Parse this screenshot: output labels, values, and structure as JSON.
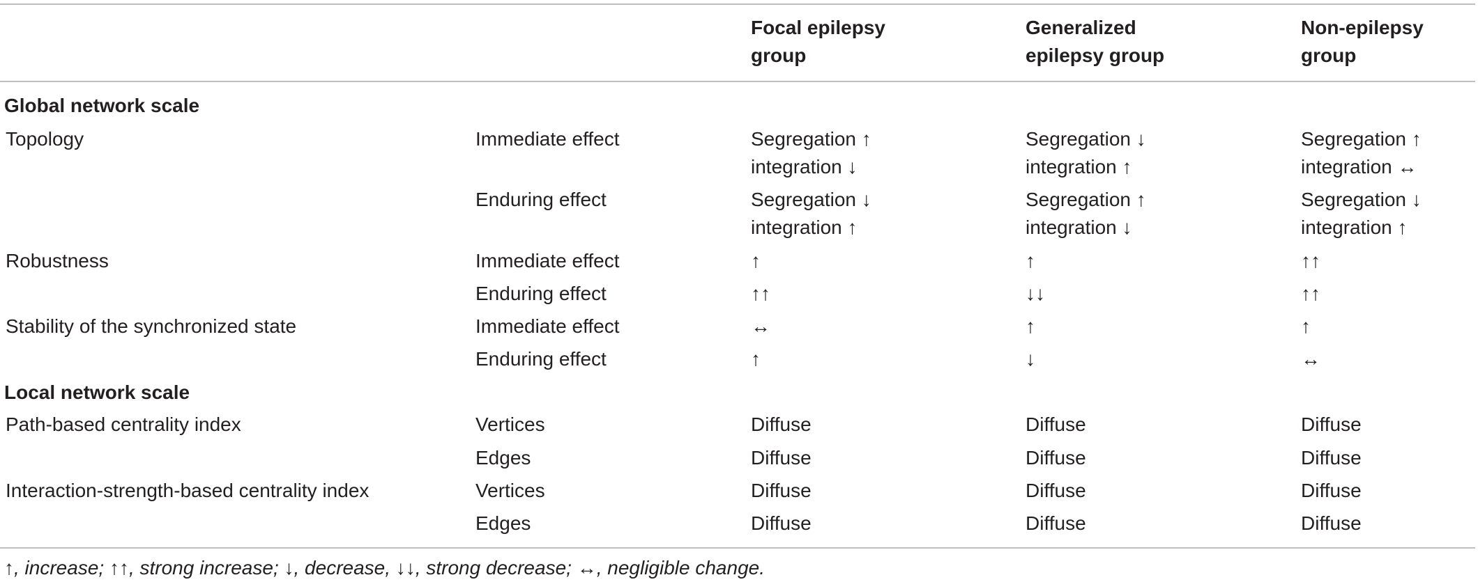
{
  "header": {
    "col3": [
      "Focal epilepsy",
      "group"
    ],
    "col4": [
      "Generalized",
      "epilepsy group"
    ],
    "col5": [
      "Non-epilepsy",
      "group"
    ]
  },
  "sections": {
    "global": "Global network scale",
    "local": "Local network scale"
  },
  "rows": {
    "topology": {
      "label": "Topology",
      "immediate": {
        "effect": "Immediate effect",
        "focal": [
          "Segregation ↑",
          "integration ↓"
        ],
        "generalized": [
          "Segregation ↓",
          "integration ↑"
        ],
        "non": [
          "Segregation ↑",
          "integration ↔"
        ]
      },
      "enduring": {
        "effect": "Enduring effect",
        "focal": [
          "Segregation ↓",
          "integration ↑"
        ],
        "generalized": [
          "Segregation ↑",
          "integration ↓"
        ],
        "non": [
          "Segregation ↓",
          "integration ↑"
        ]
      }
    },
    "robustness": {
      "label": "Robustness",
      "immediate": {
        "effect": "Immediate effect",
        "focal": "↑",
        "generalized": "↑",
        "non": "↑↑"
      },
      "enduring": {
        "effect": "Enduring effect",
        "focal": "↑↑",
        "generalized": "↓↓",
        "non": "↑↑"
      }
    },
    "stability": {
      "label": "Stability of the synchronized state",
      "immediate": {
        "effect": "Immediate effect",
        "focal": "↔",
        "generalized": "↑",
        "non": "↑"
      },
      "enduring": {
        "effect": "Enduring effect",
        "focal": "↑",
        "generalized": "↓",
        "non": "↔"
      }
    },
    "path": {
      "label": "Path-based centrality index",
      "vertices": {
        "effect": "Vertices",
        "focal": "Diffuse",
        "generalized": "Diffuse",
        "non": "Diffuse"
      },
      "edges": {
        "effect": "Edges",
        "focal": "Diffuse",
        "generalized": "Diffuse",
        "non": "Diffuse"
      }
    },
    "interaction": {
      "label": "Interaction-strength-based centrality index",
      "vertices": {
        "effect": "Vertices",
        "focal": "Diffuse",
        "generalized": "Diffuse",
        "non": "Diffuse"
      },
      "edges": {
        "effect": "Edges",
        "focal": "Diffuse",
        "generalized": "Diffuse",
        "non": "Diffuse"
      }
    }
  },
  "footnote": "↑, increase; ↑↑, strong increase; ↓, decrease, ↓↓, strong decrease; ↔, negligible change."
}
